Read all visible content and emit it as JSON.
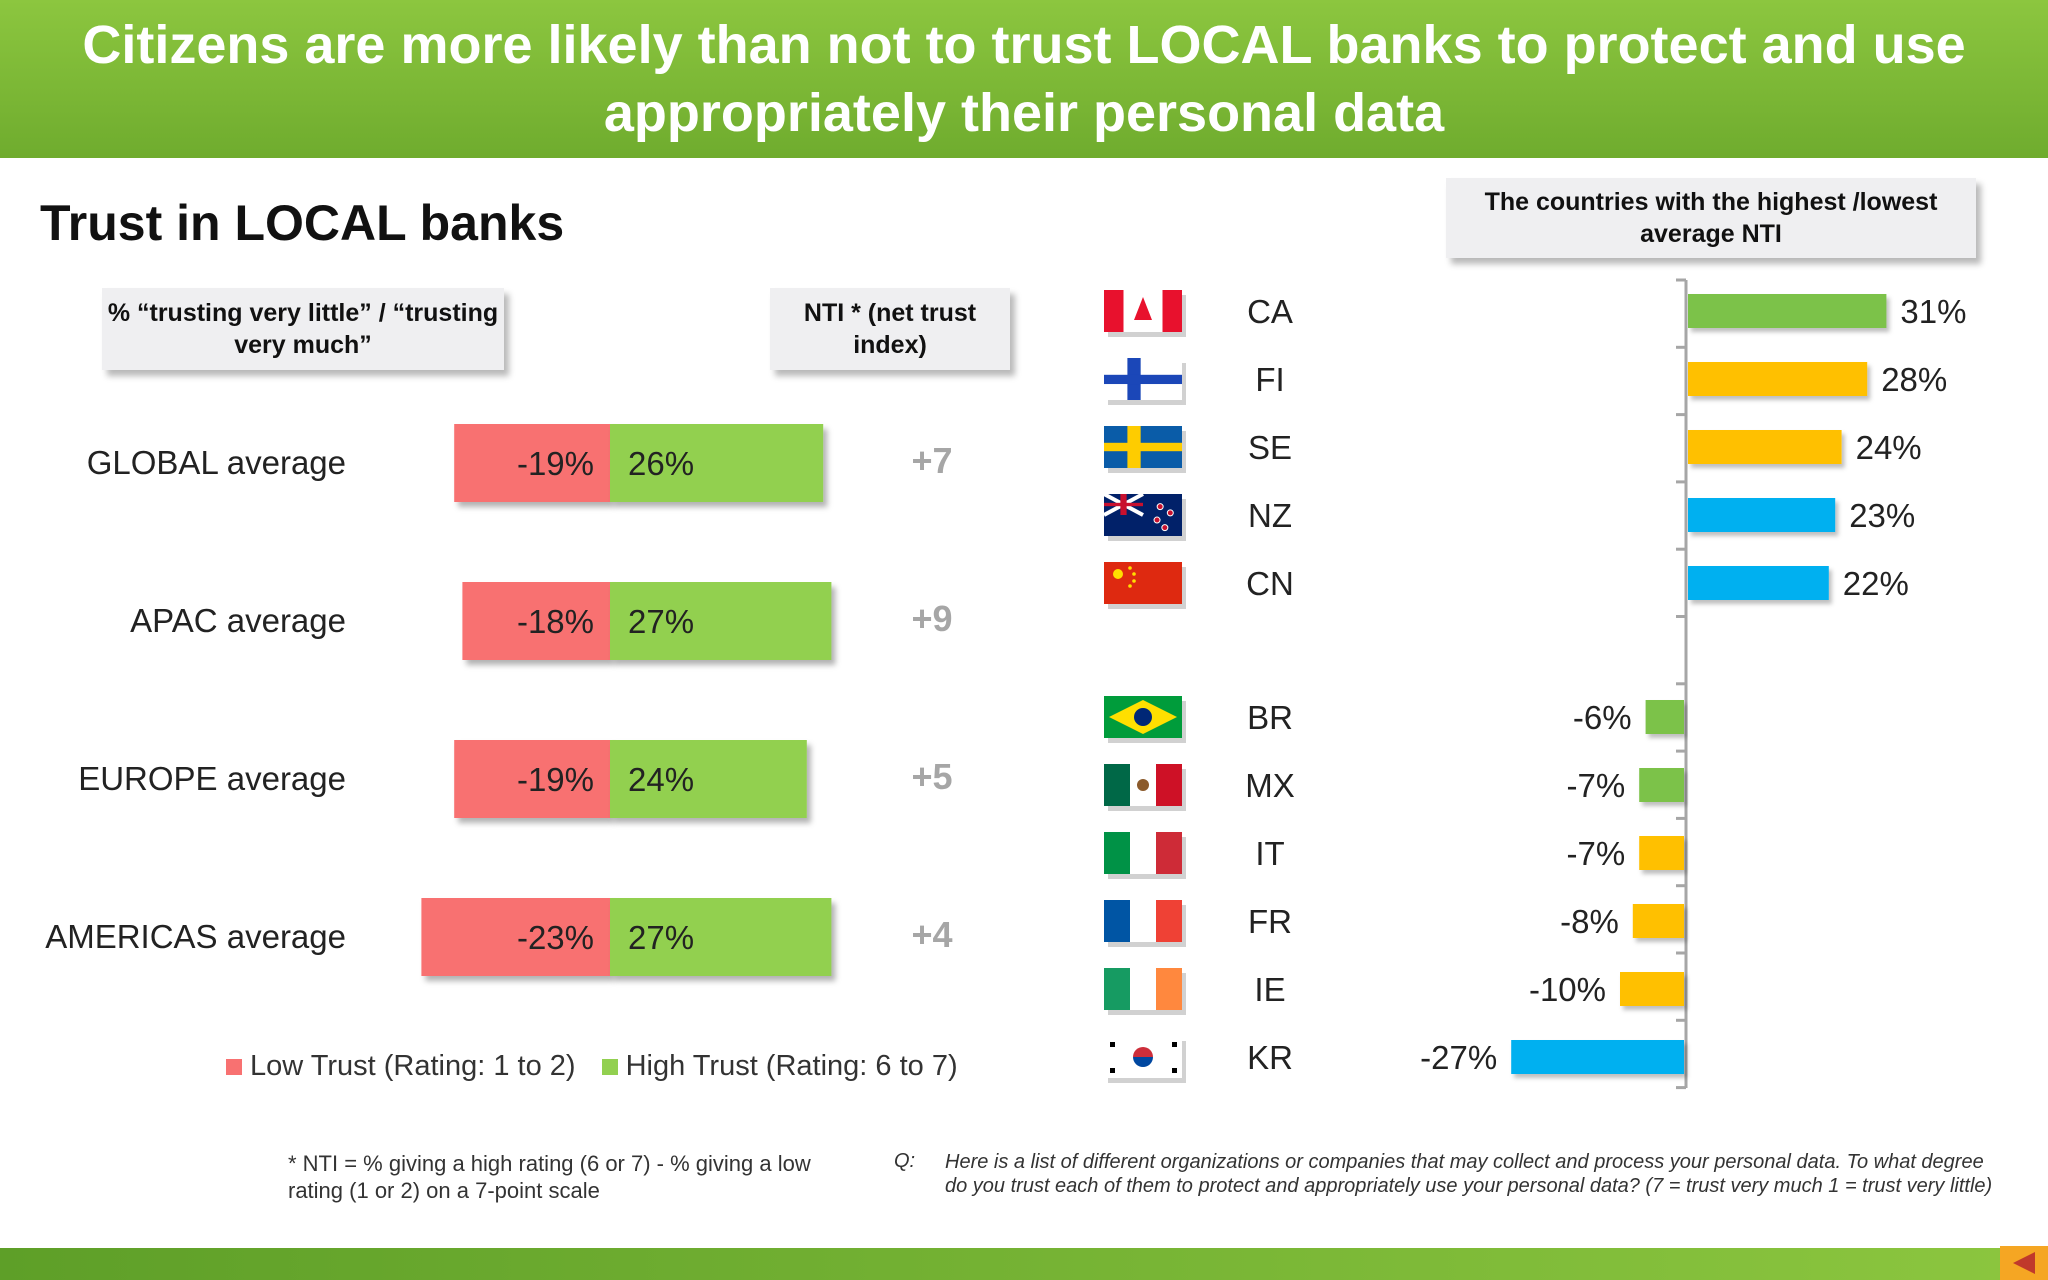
{
  "header": {
    "title": "Citizens are more likely than not to trust LOCAL banks to protect and use appropriately their personal data"
  },
  "section_title": "Trust in LOCAL banks",
  "callouts": {
    "pct": "% “trusting very  little” / “trusting very much”",
    "nti": "NTI * (net trust index)",
    "rank": "The countries with the highest /lowest average NTI"
  },
  "legend": {
    "low": "Low Trust (Rating: 1 to 2)",
    "high": "High Trust (Rating: 6 to 7)"
  },
  "footnote": "* NTI = % giving a high rating (6 or 7) - % giving a low rating (1 or 2) on a 7-point scale",
  "question": {
    "label": "Q:",
    "text": "Here is a list of different organizations or companies that may collect and process your personal data.  To what degree do you trust each of them to protect and appropriately use your personal data? (7 = trust very much 1 = trust very little)"
  },
  "colors": {
    "low": "#f87171",
    "high": "#92d050",
    "nti_text": "#a6a6a6",
    "green": "#7cc24a",
    "yellow": "#ffc000",
    "blue": "#00b0f0",
    "axis": "#a6a6a6"
  },
  "chart_data": [
    {
      "type": "bar",
      "categories": [
        "GLOBAL average",
        "APAC average",
        "EUROPE average",
        "AMERICAS average"
      ],
      "series": [
        {
          "name": "Low Trust (Rating: 1 to 2)",
          "values": [
            -19,
            -18,
            -19,
            -23
          ],
          "labels": [
            "-19%",
            "-18%",
            "-19%",
            "-23%"
          ]
        },
        {
          "name": "High Trust (Rating: 6 to 7)",
          "values": [
            26,
            27,
            24,
            27
          ],
          "labels": [
            "26%",
            "27%",
            "24%",
            "27%"
          ]
        }
      ],
      "nti": [
        "+7",
        "+9",
        "+5",
        "+4"
      ]
    },
    {
      "type": "bar",
      "categories": [
        "CA",
        "FI",
        "SE",
        "NZ",
        "CN",
        "BR",
        "MX",
        "IT",
        "FR",
        "IE",
        "KR"
      ],
      "values": [
        31,
        28,
        24,
        23,
        22,
        -6,
        -7,
        -7,
        -8,
        -10,
        -27
      ],
      "labels": [
        "31%",
        "28%",
        "24%",
        "23%",
        "22%",
        "-6%",
        "-7%",
        "-7%",
        "-8%",
        "-10%",
        "-27%"
      ],
      "region": [
        "americas",
        "europe",
        "europe",
        "apac",
        "apac",
        "americas",
        "americas",
        "europe",
        "europe",
        "europe",
        "apac"
      ],
      "flags": [
        "canada-flag",
        "finland-flag",
        "sweden-flag",
        "new-zealand-flag",
        "china-flag",
        "brazil-flag",
        "mexico-flag",
        "italy-flag",
        "france-flag",
        "ireland-flag",
        "south-korea-flag"
      ]
    }
  ]
}
